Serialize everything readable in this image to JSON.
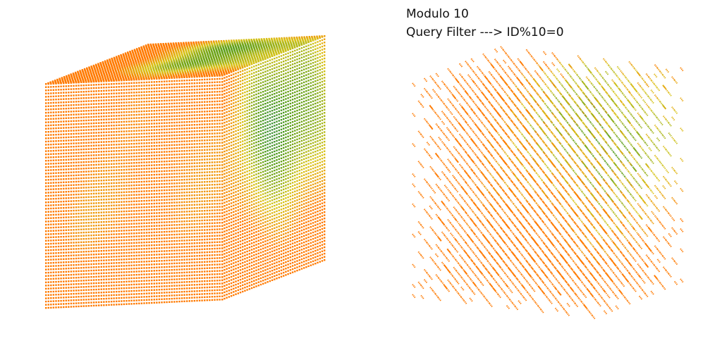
{
  "captions": {
    "line1": "Modulo 10",
    "line2": "Query Filter ---> ID%10=0"
  },
  "palette": {
    "blue": "#0033e0",
    "teal": "#1c7ea0",
    "green": "#4f9a18",
    "yellow": "#d8c418",
    "orange": "#ff7a00",
    "background": "#ffffff"
  }
}
